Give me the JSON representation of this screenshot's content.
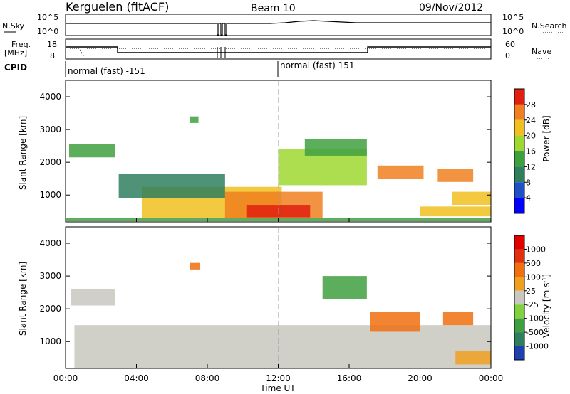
{
  "header": {
    "station": "Kerguelen (fitACF)",
    "beam": "Beam 10",
    "date": "09/Nov/2012"
  },
  "summary_panels": {
    "nsky_label": "N.Sky",
    "nsearch_label": "N.Search",
    "freq_label_line1": "Freq.",
    "freq_label_line2": "[MHz]",
    "nave_label": "Nave",
    "cpid_label": "CPID",
    "nsky_ticks_left": [
      "10^5",
      "10^0"
    ],
    "nsky_ticks_right": [
      "10^5",
      "10^0"
    ],
    "freq_ticks": [
      "18",
      "8"
    ],
    "nave_ticks": [
      "60",
      "0"
    ],
    "cpid_segments": [
      "normal (fast) -151",
      "normal (fast) 151"
    ]
  },
  "chart_data": [
    {
      "type": "heatmap",
      "title": "",
      "xlabel": "",
      "ylabel": "Slant Range [km]",
      "xlim": [
        0,
        24
      ],
      "ylim": [
        180,
        4500
      ],
      "x_ticks": [
        "00:00",
        "04:00",
        "08:00",
        "12:00",
        "16:00",
        "20:00",
        "00:00"
      ],
      "y_ticks": [
        1000,
        2000,
        3000,
        4000
      ],
      "colorbar": {
        "label": "Power [dB]",
        "ticks": [
          4,
          8,
          12,
          16,
          20,
          24,
          28
        ],
        "range": [
          0,
          32
        ],
        "colors": [
          "#0000ff",
          "#2050c8",
          "#2f7f5f",
          "#3fa040",
          "#9ed830",
          "#f0c020",
          "#f08020",
          "#e02010"
        ]
      },
      "regions": [
        {
          "t": [
            0.0,
            24.0
          ],
          "r": [
            200,
            300
          ],
          "level": 3
        },
        {
          "t": [
            4.3,
            12.2
          ],
          "r": [
            300,
            1250
          ],
          "level": 5
        },
        {
          "t": [
            9.0,
            14.5
          ],
          "r": [
            300,
            1100
          ],
          "level": 6
        },
        {
          "t": [
            10.2,
            13.8
          ],
          "r": [
            320,
            700
          ],
          "level": 7
        },
        {
          "t": [
            3.0,
            9.0
          ],
          "r": [
            900,
            1650
          ],
          "level": 2
        },
        {
          "t": [
            12.0,
            17.0
          ],
          "r": [
            1300,
            2400
          ],
          "level": 4
        },
        {
          "t": [
            13.5,
            17.0
          ],
          "r": [
            2200,
            2700
          ],
          "level": 3
        },
        {
          "t": [
            0.2,
            2.8
          ],
          "r": [
            2150,
            2550
          ],
          "level": 3
        },
        {
          "t": [
            17.6,
            20.2
          ],
          "r": [
            1500,
            1900
          ],
          "level": 6
        },
        {
          "t": [
            21.0,
            23.0
          ],
          "r": [
            1400,
            1800
          ],
          "level": 6
        },
        {
          "t": [
            21.8,
            24.0
          ],
          "r": [
            700,
            1100
          ],
          "level": 5
        },
        {
          "t": [
            20.0,
            24.0
          ],
          "r": [
            350,
            650
          ],
          "level": 5
        },
        {
          "t": [
            7.0,
            7.5
          ],
          "r": [
            3200,
            3400
          ],
          "level": 3
        }
      ]
    },
    {
      "type": "heatmap",
      "title": "",
      "xlabel": "Time UT",
      "ylabel": "Slant Range [km]",
      "xlim": [
        0,
        24
      ],
      "ylim": [
        180,
        4500
      ],
      "x_ticks": [
        "00:00",
        "04:00",
        "08:00",
        "12:00",
        "16:00",
        "20:00",
        "00:00"
      ],
      "y_ticks": [
        1000,
        2000,
        3000,
        4000
      ],
      "colorbar": {
        "label": "Velocity [m s^-1]",
        "ticks": [
          "1000",
          "500",
          "100",
          "25",
          "-25",
          "-100",
          "-500",
          "-1000"
        ],
        "range": [
          -1000,
          1000
        ],
        "colors": [
          "#2040b0",
          "#2f7f5f",
          "#3fa040",
          "#80d040",
          "#c8c8c0",
          "#f0a020",
          "#f07010",
          "#e03010",
          "#e00000"
        ]
      },
      "regions": [
        {
          "t": [
            0.5,
            24.0
          ],
          "r": [
            200,
            1500
          ],
          "level": 4
        },
        {
          "t": [
            0.3,
            2.8
          ],
          "r": [
            2100,
            2600
          ],
          "level": 4
        },
        {
          "t": [
            14.5,
            17.0
          ],
          "r": [
            2300,
            3000
          ],
          "level": 2
        },
        {
          "t": [
            17.2,
            20.0
          ],
          "r": [
            1300,
            1900
          ],
          "level": 6
        },
        {
          "t": [
            21.3,
            23.0
          ],
          "r": [
            1500,
            1900
          ],
          "level": 6
        },
        {
          "t": [
            22.0,
            24.0
          ],
          "r": [
            300,
            700
          ],
          "level": 5
        },
        {
          "t": [
            7.0,
            7.6
          ],
          "r": [
            3200,
            3400
          ],
          "level": 6
        }
      ]
    }
  ]
}
